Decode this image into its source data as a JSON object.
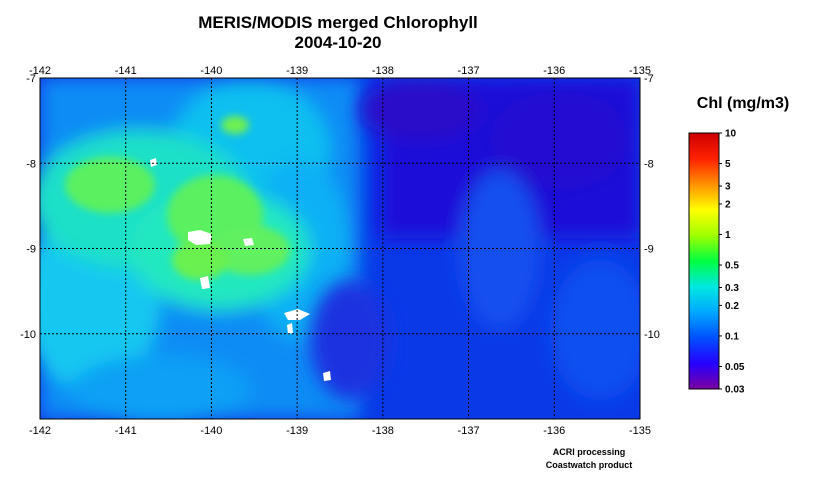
{
  "title": {
    "line1": "MERIS/MODIS merged Chlorophyll",
    "line2": "2004-10-20"
  },
  "map": {
    "lon_range": [
      -142,
      -135
    ],
    "lat_range": [
      -11,
      -7
    ],
    "lon_ticks": [
      -142,
      -141,
      -140,
      -139,
      -138,
      -137,
      -136,
      -135
    ],
    "lat_ticks": [
      -7,
      -8,
      -9,
      -10
    ],
    "lon_tick_labels": [
      "-142",
      "-141",
      "-140",
      "-139",
      "-138",
      "-137",
      "-136",
      "-135"
    ],
    "lat_tick_labels": [
      "-7",
      "-8",
      "-9",
      "-10"
    ],
    "grid": "dotted",
    "land_color": "#ffffff"
  },
  "colorbar": {
    "title": "Chl (mg/m3)",
    "scale": "log",
    "range": [
      0.03,
      10
    ],
    "labels": [
      "10",
      "5",
      "3",
      "2",
      "1",
      "0.5",
      "0.3",
      "0.2",
      "0.1",
      "0.05",
      "0.03"
    ],
    "values": [
      10,
      5,
      3,
      2,
      1,
      0.5,
      0.3,
      0.2,
      0.1,
      0.05,
      0.03
    ],
    "colors": [
      "#7a00a0",
      "#2600ff",
      "#0050ff",
      "#00a8ff",
      "#00e8e0",
      "#00ff40",
      "#a0ff00",
      "#ffff00",
      "#ff9000",
      "#ff2000",
      "#cc0000"
    ]
  },
  "credits": {
    "line1": "ACRI processing",
    "line2": "Coastwatch product"
  }
}
